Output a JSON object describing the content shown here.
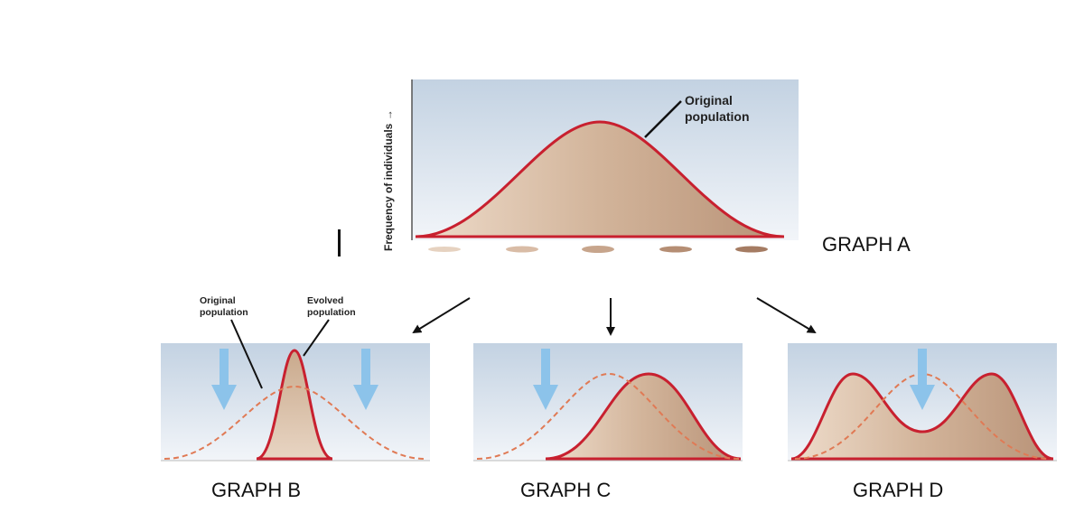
{
  "graph_a": {
    "label": "GRAPH A",
    "curve_label_line1": "Original",
    "curve_label_line2": "population",
    "y_axis_label": "Frequency of individuals →"
  },
  "graph_b": {
    "label": "GRAPH B",
    "original_label_line1": "Original",
    "original_label_line2": "population",
    "evolved_label_line1": "Evolved",
    "evolved_label_line2": "population"
  },
  "graph_c": {
    "label": "GRAPH C"
  },
  "graph_d": {
    "label": "GRAPH D"
  },
  "colors": {
    "panel_top": "#c3d2e2",
    "panel_bottom": "#f2f5f9",
    "curve_stroke": "#c8202f",
    "curve_fill_dark": "#c9a98c",
    "curve_fill_light": "#eedccb",
    "dashed_curve": "#e07a55",
    "selection_arrow": "#8cc3ea",
    "connector_arrow": "#111111"
  }
}
